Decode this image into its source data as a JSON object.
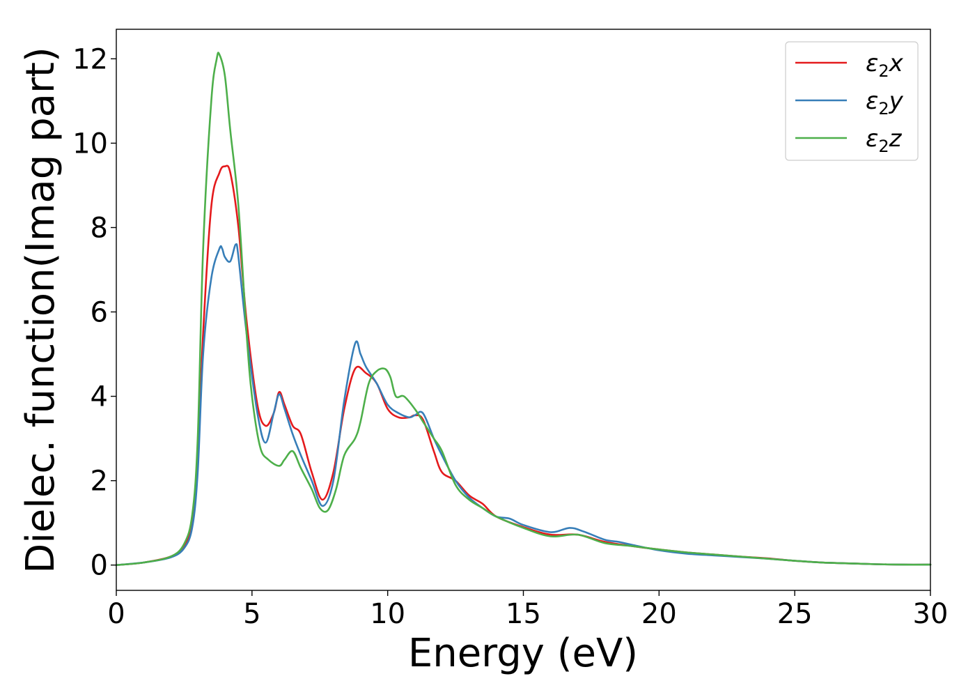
{
  "chart_data": {
    "type": "line",
    "title": "",
    "xlabel": "Energy (eV)",
    "ylabel": "Dielec. function(Imag part)",
    "xlim": [
      0,
      30
    ],
    "ylim": [
      -0.6,
      12.7
    ],
    "xticks": [
      0,
      5,
      10,
      15,
      20,
      25,
      30
    ],
    "yticks": [
      0,
      2,
      4,
      6,
      8,
      10,
      12
    ],
    "grid": false,
    "legend_position": "top-right",
    "series": [
      {
        "name": "ε2x",
        "label_base": "ε",
        "label_sub": "2",
        "label_suffix": "x",
        "color": "#e41a1c",
        "x": [
          0,
          1,
          2,
          2.5,
          2.8,
          3.0,
          3.2,
          3.5,
          3.8,
          4.0,
          4.2,
          4.5,
          4.8,
          5.2,
          5.5,
          5.8,
          6.0,
          6.2,
          6.5,
          6.8,
          7.2,
          7.6,
          8.0,
          8.4,
          8.8,
          9.2,
          9.6,
          10.0,
          10.4,
          10.8,
          11.0,
          11.3,
          11.7,
          12.0,
          12.5,
          13.0,
          13.5,
          14.0,
          15.0,
          16.0,
          17.0,
          18.0,
          19.0,
          20.0,
          21.0,
          22.0,
          23.0,
          24.0,
          25.0,
          26.0,
          27.0,
          28.0,
          29.0,
          30.0
        ],
        "y": [
          0,
          0.06,
          0.2,
          0.45,
          1.0,
          2.5,
          5.5,
          8.5,
          9.3,
          9.45,
          9.3,
          8.0,
          5.8,
          3.8,
          3.3,
          3.6,
          4.1,
          3.8,
          3.3,
          3.1,
          2.2,
          1.55,
          2.2,
          3.7,
          4.65,
          4.55,
          4.3,
          3.7,
          3.5,
          3.5,
          3.55,
          3.45,
          2.7,
          2.2,
          2.0,
          1.65,
          1.45,
          1.15,
          0.9,
          0.72,
          0.72,
          0.55,
          0.45,
          0.37,
          0.3,
          0.25,
          0.2,
          0.16,
          0.1,
          0.06,
          0.04,
          0.02,
          0.01,
          0.01
        ]
      },
      {
        "name": "ε2y",
        "label_base": "ε",
        "label_sub": "2",
        "label_suffix": "y",
        "color": "#377eb8",
        "x": [
          0,
          1,
          2,
          2.5,
          2.8,
          3.0,
          3.2,
          3.5,
          3.8,
          3.9,
          4.0,
          4.2,
          4.4,
          4.5,
          4.8,
          5.2,
          5.5,
          5.8,
          6.0,
          6.2,
          6.5,
          6.8,
          7.2,
          7.6,
          8.0,
          8.4,
          8.8,
          9.0,
          9.2,
          9.6,
          10.0,
          10.4,
          10.8,
          11.0,
          11.3,
          11.7,
          12.0,
          12.5,
          13.0,
          13.5,
          14.0,
          14.5,
          15.0,
          16.0,
          16.7,
          17.2,
          18.0,
          18.5,
          19.0,
          20.0,
          21.0,
          22.0,
          23.0,
          24.0,
          25.0,
          26.0,
          27.0,
          28.0,
          29.0,
          30.0
        ],
        "y": [
          0,
          0.06,
          0.18,
          0.4,
          0.9,
          2.2,
          5.0,
          6.8,
          7.5,
          7.5,
          7.3,
          7.2,
          7.6,
          7.3,
          5.5,
          3.6,
          2.9,
          3.6,
          4.05,
          3.7,
          3.1,
          2.6,
          2.0,
          1.4,
          2.0,
          3.9,
          5.25,
          5.0,
          4.7,
          4.3,
          3.8,
          3.6,
          3.5,
          3.55,
          3.6,
          3.0,
          2.6,
          2.0,
          1.6,
          1.35,
          1.15,
          1.1,
          0.95,
          0.78,
          0.88,
          0.8,
          0.6,
          0.55,
          0.48,
          0.35,
          0.27,
          0.23,
          0.19,
          0.15,
          0.1,
          0.06,
          0.04,
          0.02,
          0.01,
          0.01
        ]
      },
      {
        "name": "ε2z",
        "label_base": "ε",
        "label_sub": "2",
        "label_suffix": "z",
        "color": "#4daf4a",
        "x": [
          0,
          1,
          2,
          2.5,
          2.8,
          3.0,
          3.2,
          3.5,
          3.7,
          3.8,
          4.0,
          4.2,
          4.5,
          4.8,
          5.0,
          5.3,
          5.6,
          6.0,
          6.2,
          6.5,
          6.8,
          7.2,
          7.5,
          7.8,
          8.1,
          8.4,
          8.8,
          9.0,
          9.3,
          9.6,
          9.9,
          10.1,
          10.3,
          10.6,
          11.0,
          11.3,
          11.7,
          12.0,
          12.5,
          13.0,
          13.5,
          14.0,
          15.0,
          16.0,
          17.0,
          18.0,
          19.0,
          20.0,
          21.0,
          22.0,
          23.0,
          24.0,
          25.0,
          26.0,
          27.0,
          28.0,
          29.0,
          30.0
        ],
        "y": [
          0,
          0.06,
          0.2,
          0.5,
          1.2,
          3.0,
          7.5,
          11.0,
          12.0,
          12.1,
          11.6,
          10.3,
          8.5,
          5.5,
          4.0,
          2.8,
          2.5,
          2.35,
          2.5,
          2.7,
          2.3,
          1.8,
          1.35,
          1.3,
          1.8,
          2.6,
          3.0,
          3.4,
          4.3,
          4.6,
          4.65,
          4.45,
          4.0,
          4.0,
          3.7,
          3.4,
          3.0,
          2.7,
          1.9,
          1.55,
          1.35,
          1.15,
          0.88,
          0.68,
          0.72,
          0.52,
          0.45,
          0.37,
          0.3,
          0.25,
          0.2,
          0.15,
          0.1,
          0.06,
          0.04,
          0.02,
          0.01,
          0.01
        ]
      }
    ]
  }
}
